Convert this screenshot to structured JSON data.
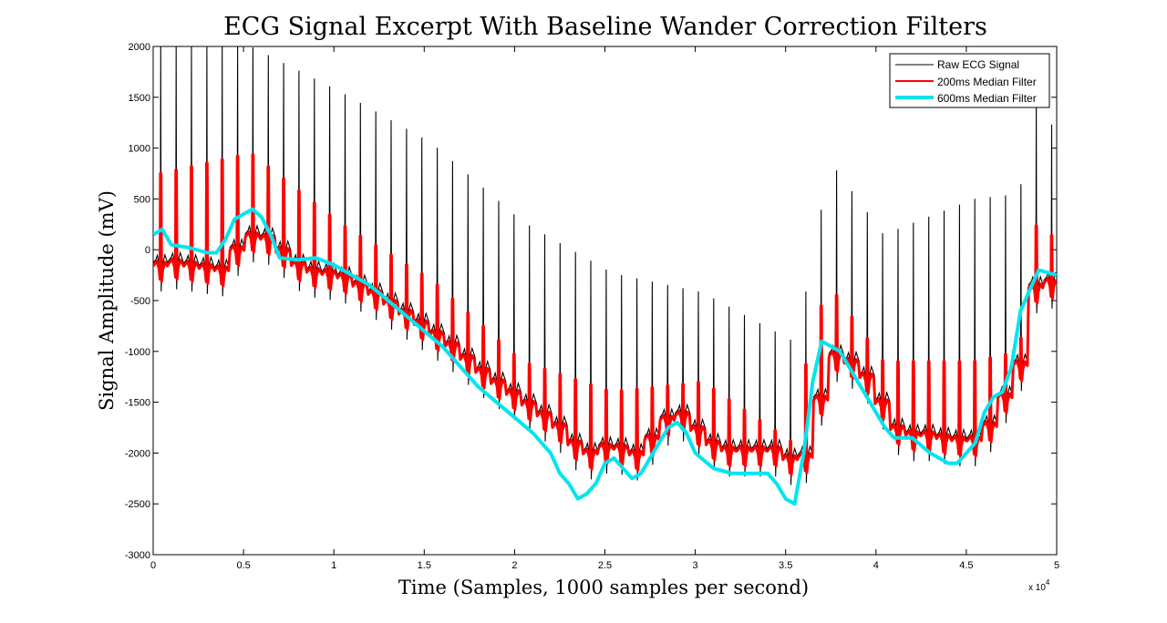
{
  "chart_data": {
    "type": "line",
    "title": "ECG Signal Excerpt With Baseline Wander Correction Filters",
    "xlabel": "Time (Samples, 1000 samples per second)",
    "ylabel": "Signal Amplitude (mV)",
    "x_multiplier": "x 10",
    "x_multiplier_exp": "4",
    "xlim": [
      0,
      50000
    ],
    "ylim": [
      -3000,
      2000
    ],
    "x_ticks": [
      0,
      5000,
      10000,
      15000,
      20000,
      25000,
      30000,
      35000,
      40000,
      45000,
      50000
    ],
    "x_tick_labels": [
      "0",
      "0.5",
      "1",
      "1.5",
      "2",
      "2.5",
      "3",
      "3.5",
      "4",
      "4.5",
      "5"
    ],
    "y_ticks": [
      -3000,
      -2500,
      -2000,
      -1500,
      -1000,
      -500,
      0,
      500,
      1000,
      1500,
      2000
    ],
    "y_tick_labels": [
      "-3000",
      "-2500",
      "-2000",
      "-1500",
      "-1000",
      "-500",
      "0",
      "500",
      "1000",
      "1500",
      "2000"
    ],
    "grid": false,
    "legend_position": "top-right",
    "series": [
      {
        "name": "Raw ECG Signal",
        "color": "#000000",
        "role": "raw",
        "beat_period": 850,
        "baseline": {
          "x": [
            0,
            500,
            2000,
            3500,
            4500,
            5500,
            6500,
            8000,
            10000,
            12000,
            14000,
            16000,
            18000,
            20000,
            22000,
            23500,
            25000,
            26500,
            28000,
            29000,
            30000,
            31000,
            32500,
            34000,
            35500,
            36200,
            37000,
            38000,
            39000,
            40000,
            41000,
            42500,
            44000,
            45500,
            46500,
            47500,
            48500,
            49000,
            50000
          ],
          "y": [
            -130,
            -100,
            -140,
            -180,
            90,
            200,
            50,
            -180,
            -230,
            -420,
            -650,
            -900,
            -1200,
            -1450,
            -1700,
            -2000,
            -1900,
            -2000,
            -1650,
            -1600,
            -1800,
            -1950,
            -1950,
            -1950,
            -2100,
            -1800,
            -1000,
            -1050,
            -1200,
            -1500,
            -1800,
            -1800,
            -1850,
            -1850,
            -1500,
            -1200,
            -300,
            -300,
            -300
          ]
        },
        "r_peaks": {
          "x": [
            0,
            5000,
            10000,
            15000,
            20000,
            25000,
            30000,
            35000,
            36000,
            37000,
            40000,
            45000,
            47500,
            48500,
            50000
          ],
          "y": [
            2000,
            2000,
            1550,
            1050,
            280,
            -230,
            -420,
            -900,
            -200,
            880,
            150,
            500,
            550,
            1500,
            1000
          ]
        }
      },
      {
        "name": "200ms Median Filter",
        "color": "#ff0000",
        "role": "median200",
        "baseline": {
          "x": [
            0,
            500,
            2000,
            3500,
            4500,
            5500,
            6500,
            8000,
            10000,
            12000,
            14000,
            16000,
            18000,
            20000,
            22000,
            23500,
            25000,
            26500,
            28000,
            29000,
            30000,
            31000,
            32500,
            34000,
            35500,
            36200,
            37000,
            38000,
            39000,
            40000,
            41000,
            42500,
            44000,
            45500,
            46500,
            47500,
            48500,
            49000,
            50000
          ],
          "y": [
            -130,
            -100,
            -140,
            -180,
            90,
            200,
            50,
            -180,
            -230,
            -420,
            -650,
            -900,
            -1200,
            -1450,
            -1700,
            -2000,
            -1900,
            -2000,
            -1650,
            -1600,
            -1800,
            -1950,
            -1950,
            -1950,
            -2100,
            -1800,
            -1000,
            -1050,
            -1200,
            -1500,
            -1800,
            -1800,
            -1850,
            -1850,
            -1500,
            -1200,
            -300,
            -300,
            -300
          ]
        },
        "peaks": {
          "x": [
            0,
            5000,
            10000,
            15000,
            20000,
            25000,
            30000,
            35000,
            36000,
            37000,
            40000,
            45000,
            47500,
            48500,
            50000
          ],
          "y": [
            750,
            950,
            250,
            -300,
            -1100,
            -1400,
            -1300,
            -1900,
            -800,
            -350,
            -1100,
            -1100,
            -1000,
            300,
            0
          ]
        }
      },
      {
        "name": "600ms Median Filter",
        "color": "#00e5ee",
        "role": "median600",
        "x": [
          0,
          500,
          1000,
          2000,
          3000,
          3500,
          4000,
          4500,
          5000,
          5500,
          6000,
          6500,
          7000,
          8000,
          9000,
          10000,
          11000,
          12000,
          13000,
          14000,
          15000,
          16000,
          17000,
          18000,
          19000,
          20000,
          21000,
          22000,
          22500,
          23000,
          23500,
          24000,
          24500,
          25000,
          25500,
          26000,
          26500,
          27000,
          28000,
          28500,
          29000,
          29500,
          30000,
          31000,
          32000,
          33000,
          34000,
          34500,
          35000,
          35500,
          36000,
          36500,
          37000,
          37500,
          38000,
          38500,
          39000,
          39500,
          40000,
          40500,
          41000,
          42000,
          43000,
          44000,
          44500,
          45000,
          45500,
          46000,
          46500,
          47000,
          47500,
          48000,
          48500,
          49000,
          50000
        ],
        "y": [
          150,
          200,
          50,
          20,
          -30,
          -30,
          100,
          300,
          350,
          400,
          320,
          150,
          -80,
          -100,
          -80,
          -150,
          -250,
          -350,
          -500,
          -650,
          -800,
          -950,
          -1150,
          -1350,
          -1500,
          -1650,
          -1800,
          -2000,
          -2200,
          -2300,
          -2450,
          -2400,
          -2300,
          -2100,
          -2050,
          -2150,
          -2250,
          -2200,
          -1900,
          -1750,
          -1700,
          -1800,
          -2000,
          -2150,
          -2200,
          -2200,
          -2200,
          -2300,
          -2450,
          -2500,
          -2000,
          -1300,
          -900,
          -950,
          -1000,
          -1150,
          -1300,
          -1450,
          -1600,
          -1750,
          -1850,
          -1850,
          -2000,
          -2100,
          -2100,
          -2000,
          -1900,
          -1600,
          -1450,
          -1400,
          -1150,
          -600,
          -400,
          -200,
          -250
        ]
      }
    ]
  }
}
